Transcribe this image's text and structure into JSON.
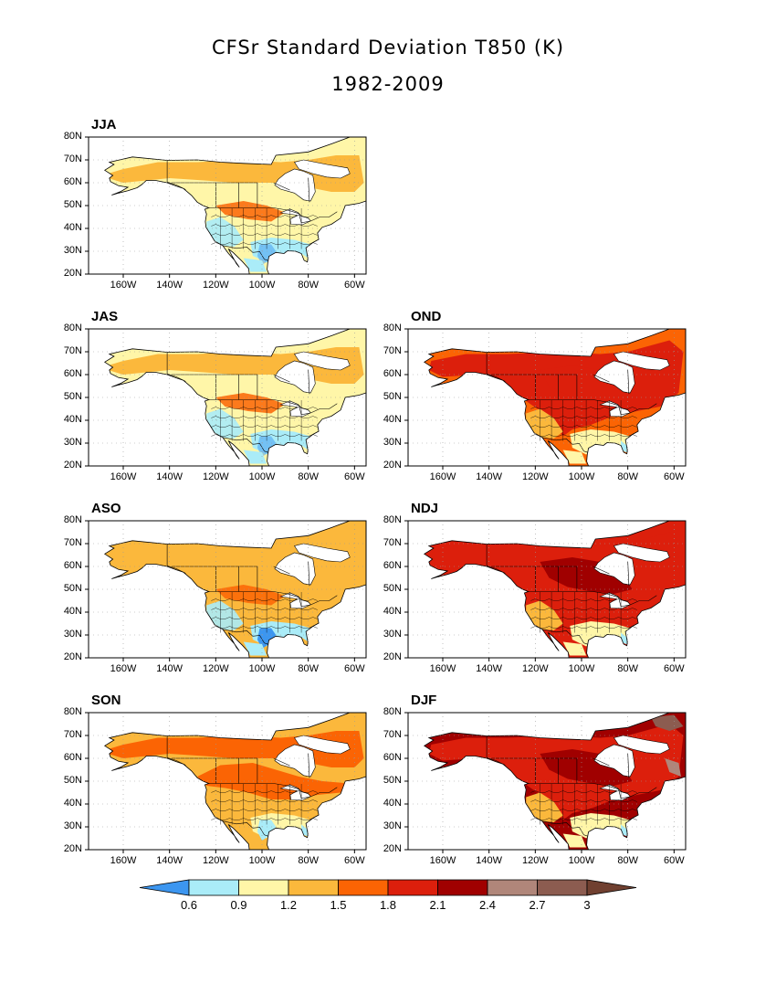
{
  "figure": {
    "title": "CFSr Standard Deviation T850 (K)",
    "subtitle": "1982-2009"
  },
  "axes": {
    "lat_labels": [
      "80N",
      "70N",
      "60N",
      "50N",
      "40N",
      "30N",
      "20N"
    ],
    "lon_labels": [
      "160W",
      "140W",
      "120W",
      "100W",
      "80W",
      "60W"
    ]
  },
  "panels": [
    {
      "label": "JJA",
      "level": 1
    },
    {
      "label": "JAS",
      "level": 1
    },
    {
      "label": "OND",
      "level": 4
    },
    {
      "label": "ASO",
      "level": 2
    },
    {
      "label": "NDJ",
      "level": 5
    },
    {
      "label": "SON",
      "level": 3
    },
    {
      "label": "DJF",
      "level": 6
    }
  ],
  "colorbar": {
    "labels": [
      "0.6",
      "0.9",
      "1.2",
      "1.5",
      "1.8",
      "2.1",
      "2.4",
      "2.7",
      "3"
    ],
    "colors": [
      "#3c96f0",
      "#aaecf8",
      "#fff6a8",
      "#fbb83c",
      "#fb6404",
      "#dc1f0c",
      "#a00000",
      "#b0867a",
      "#8c5c50",
      "#704030"
    ]
  },
  "palette": {
    "ocean": "#ffffff",
    "grid": "#999999",
    "border": "#000000"
  }
}
